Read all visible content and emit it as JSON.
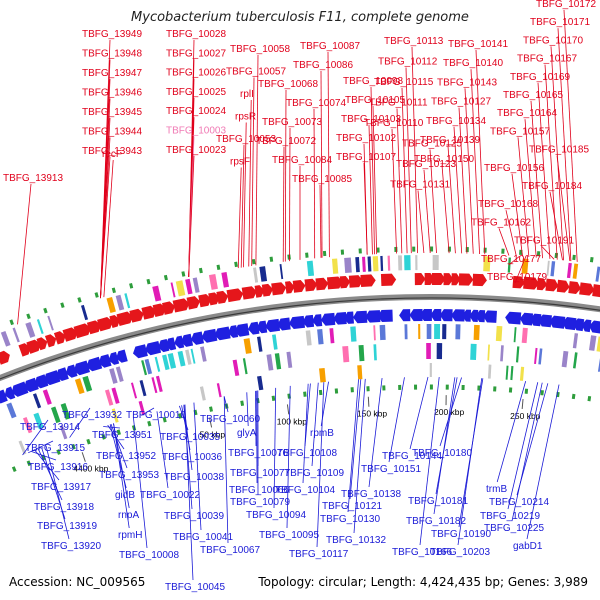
{
  "title": "Mycobacterium tuberculosis F11, complete genome",
  "footer": {
    "accession": "Accession: NC_009565",
    "summary": "Topology: circular; Length: 4,424,435 bp; Genes: 3,989"
  },
  "colors": {
    "forward_label": "#e0001b",
    "reverse_label": "#1a1ad6",
    "highlight_label": "#f07ab4",
    "backbone": "#8a8a8a"
  },
  "scale_labels": [
    "4400 kbp",
    "50 kbp",
    "100 kbp",
    "150 kbp",
    "200 kbp",
    "250 kbp"
  ],
  "forward_genes": [
    "TBFG_13949",
    "TBFG_13948",
    "TBFG_13947",
    "TBFG_13946",
    "TBFG_13945",
    "TBFG_13944",
    "TBFG_13943",
    "recF",
    "TBFG_13913",
    "TBFG_10028",
    "TBFG_10027",
    "TBFG_10026",
    "TBFG_10025",
    "TBFG_10024",
    "TBFG_10003",
    "TBFG_10023",
    "TBFG_10058",
    "TBFG_10057",
    "rplI",
    "rpsR",
    "TBFG_10053",
    "rpsF",
    "TBFG_10087",
    "TBFG_10086",
    "TBFG_10068",
    "TBFG_10074",
    "TBFG_10073",
    "TBFG_10072",
    "TBFG_10084",
    "TBFG_10085",
    "TBFG_10098",
    "TBFG_10105",
    "TBFG_10103",
    "TBFG_10102",
    "TBFG_10107",
    "TBFG_10113",
    "TBFG_10112",
    "TBFG_10115",
    "TBFG_10111",
    "TBFG_10110",
    "TBFG_10125",
    "TBFG_10123",
    "TBFG_10131",
    "TBFG_10141",
    "TBFG_10140",
    "TBFG_10143",
    "TBFG_10127",
    "TBFG_10134",
    "TBFG_10139",
    "TBFG_10150",
    "TBFG_10172",
    "TBFG_10171",
    "TBFG_10170",
    "TBFG_10167",
    "TBFG_10169",
    "TBFG_10165",
    "TBFG_10164",
    "TBFG_10157",
    "TBFG_10185",
    "TBFG_10156",
    "TBFG_10184",
    "TBFG_10168",
    "TBFG_10162",
    "TBFG_10191",
    "TBFG_10177",
    "TBFG_10179"
  ],
  "reverse_genes": [
    "TBFG_13932",
    "TBFG_13914",
    "TBFG_13915",
    "TBFG_13916",
    "TBFG_13917",
    "TBFG_13918",
    "TBFG_13919",
    "TBFG_13920",
    "TBFG_10010",
    "TBFG_13951",
    "TBFG_13952",
    "TBFG_13953",
    "gidB",
    "rnpA",
    "rpmH",
    "TBFG_10008",
    "TBFG_10035",
    "TBFG_10036",
    "TBFG_10038",
    "TBFG_10022",
    "TBFG_10039",
    "TBFG_10041",
    "TBFG_10045",
    "TBFG_10060",
    "glyA",
    "TBFG_10076",
    "TBFG_10077",
    "TBFG_10066",
    "TBFG_10079",
    "TBFG_10067",
    "TBFG_10094",
    "TBFG_10095",
    "rpmB",
    "TBFG_10108",
    "TBFG_10109",
    "TBFG_10104",
    "TBFG_10121",
    "TBFG_10117",
    "TBFG_10130",
    "TBFG_10132",
    "TBFG_10138",
    "TBFG_10144",
    "TBFG_10151",
    "TBFG_10166",
    "TBFG_10180",
    "TBFG_10181",
    "TBFG_10182",
    "TBFG_10190",
    "TBFG_10203",
    "trmB",
    "TBFG_10214",
    "TBFG_10219",
    "TBFG_10225",
    "gabD1"
  ]
}
